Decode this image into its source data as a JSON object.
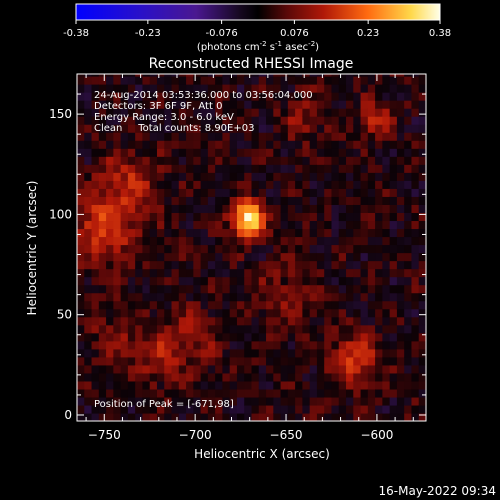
{
  "colorbar": {
    "ticks": [
      "-0.38",
      "-0.23",
      "-0.076",
      "0.076",
      "0.23",
      "0.38"
    ],
    "tick_values": [
      -0.38,
      -0.23,
      -0.076,
      0.076,
      0.23,
      0.38
    ],
    "unit_main": "(photons cm",
    "unit_exp1": "-2",
    "unit_mid": " s",
    "unit_exp2": "-1",
    "unit_mid2": " asec",
    "unit_exp3": "-2",
    "unit_close": ")",
    "range": [
      -0.38,
      0.38
    ],
    "colors": [
      "#0000ff",
      "#2a10c8",
      "#5a1aa8",
      "#000000",
      "#6a0a0a",
      "#b01808",
      "#e84a10",
      "#ff9a20",
      "#ffd84a",
      "#ffffe8"
    ]
  },
  "chart_data": {
    "type": "heatmap",
    "title": "Reconstructed RHESSI Image",
    "xlabel": "Heliocentric X (arcsec)",
    "ylabel": "Heliocentric Y (arcsec)",
    "xlim": [
      -765,
      -573
    ],
    "ylim": [
      -3,
      170
    ],
    "x_ticks": [
      -750,
      -700,
      -650,
      -600
    ],
    "y_ticks": [
      0,
      50,
      100,
      150
    ],
    "x_tick_labels": [
      "−750",
      "−700",
      "−650",
      "−600"
    ],
    "y_tick_labels": [
      "0",
      "50",
      "100",
      "150"
    ],
    "peak": {
      "x": -671,
      "y": 98,
      "value": 0.38
    },
    "sources": [
      {
        "x": -671,
        "y": 98,
        "amp": 0.38,
        "sigma": 6
      },
      {
        "x": -750,
        "y": 95,
        "amp": 0.16,
        "sigma": 13
      },
      {
        "x": -735,
        "y": 118,
        "amp": 0.1,
        "sigma": 10
      },
      {
        "x": -612,
        "y": 28,
        "amp": 0.15,
        "sigma": 9
      },
      {
        "x": -601,
        "y": 148,
        "amp": 0.13,
        "sigma": 6
      },
      {
        "x": -640,
        "y": 148,
        "amp": 0.07,
        "sigma": 9
      },
      {
        "x": -720,
        "y": 30,
        "amp": 0.09,
        "sigma": 11
      },
      {
        "x": -700,
        "y": 40,
        "amp": 0.07,
        "sigma": 10
      },
      {
        "x": -650,
        "y": 60,
        "amp": 0.06,
        "sigma": 12
      },
      {
        "x": -745,
        "y": 40,
        "amp": 0.06,
        "sigma": 10
      }
    ],
    "annotations": [
      "24-Aug-2014 03:53:36.000 to 03:56:04.000",
      "Detectors: 3F 6F 9F, Att 0",
      "Energy Range: 3.0 - 6.0 keV",
      "Clean     Total counts: 8.90E+03"
    ],
    "peak_label": "Position of Peak = [-671,98]",
    "grid": false
  },
  "footer": {
    "timestamp": "16-May-2022 09:34"
  }
}
